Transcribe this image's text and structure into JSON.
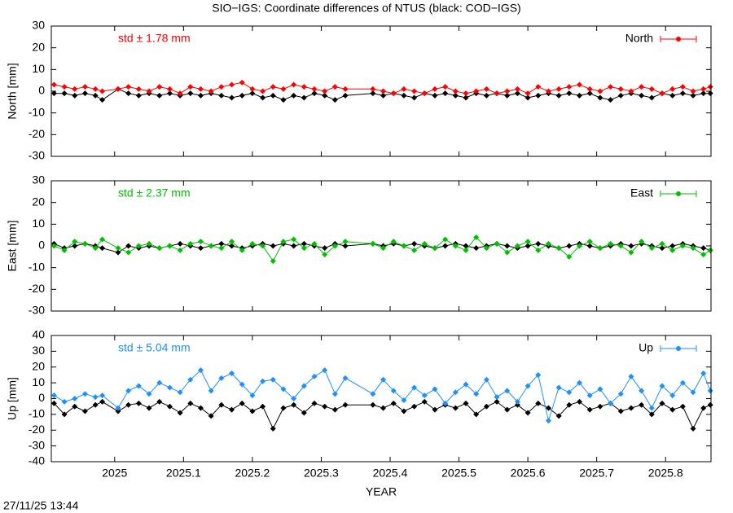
{
  "title": "SIO−IGS: Coordinate differences of NTUS (black: COD−IGS)",
  "timestamp": "27/11/25 13:44",
  "chart_data": [
    {
      "type": "line",
      "ylabel": "North [mm]",
      "annotation": "std ± 1.78 mm",
      "xlim": [
        2024.908,
        2025.866
      ],
      "xticks": [
        2025,
        2025.1,
        2025.2,
        2025.3,
        2025.4,
        2025.5,
        2025.6,
        2025.7,
        2025.8
      ],
      "ylim": [
        -30,
        30
      ],
      "yticks": [
        -30,
        -20,
        -10,
        0,
        10,
        20,
        30
      ],
      "x": [
        2024.912,
        2024.927,
        2024.942,
        2024.957,
        2024.972,
        2024.982,
        2025.005,
        2025.02,
        2025.035,
        2025.05,
        2025.065,
        2025.08,
        2025.095,
        2025.11,
        2025.125,
        2025.14,
        2025.155,
        2025.17,
        2025.185,
        2025.2,
        2025.215,
        2025.23,
        2025.245,
        2025.26,
        2025.275,
        2025.29,
        2025.305,
        2025.32,
        2025.335,
        2025.375,
        2025.39,
        2025.405,
        2025.42,
        2025.435,
        2025.45,
        2025.465,
        2025.48,
        2025.495,
        2025.51,
        2025.525,
        2025.54,
        2025.555,
        2025.57,
        2025.585,
        2025.6,
        2025.615,
        2025.63,
        2025.645,
        2025.66,
        2025.675,
        2025.69,
        2025.705,
        2025.72,
        2025.735,
        2025.75,
        2025.765,
        2025.78,
        2025.795,
        2025.81,
        2025.825,
        2025.84,
        2025.855,
        2025.865
      ],
      "series": [
        {
          "color": "#000000",
          "values": [
            -1,
            -1,
            -2,
            -1,
            -2,
            -4,
            1,
            -1,
            -2,
            -1,
            -2,
            -1,
            -2,
            -1,
            -2,
            -1,
            -2,
            -3,
            -2,
            -1,
            -3,
            -2,
            -4,
            -2,
            -3,
            -1,
            -2,
            -4,
            -2,
            -1,
            -2,
            -1,
            -2,
            -3,
            -1,
            -2,
            -1,
            -2,
            -3,
            -1,
            -2,
            -1,
            -2,
            -1,
            -3,
            -2,
            -1,
            -2,
            -1,
            -2,
            -1,
            -3,
            -4,
            -2,
            -1,
            -2,
            -3,
            -1,
            -2,
            -1,
            -2,
            -1,
            -1
          ]
        },
        {
          "name": "North",
          "color": "#ff0000",
          "values": [
            3,
            2,
            1,
            2,
            1,
            0,
            1,
            2,
            1,
            0,
            2,
            1,
            -1,
            2,
            1,
            0,
            2,
            3,
            4,
            1,
            0,
            2,
            1,
            3,
            2,
            1,
            0,
            2,
            1,
            1,
            0,
            -1,
            1,
            0,
            -1,
            1,
            2,
            0,
            -1,
            0,
            1,
            -1,
            0,
            1,
            -1,
            2,
            0,
            1,
            2,
            3,
            1,
            0,
            2,
            1,
            0,
            2,
            1,
            -1,
            1,
            2,
            0,
            1,
            2
          ]
        }
      ]
    },
    {
      "type": "line",
      "ylabel": "East [mm]",
      "annotation": "std ± 2.37 mm",
      "xlim": [
        2024.908,
        2025.866
      ],
      "xticks": [
        2025,
        2025.1,
        2025.2,
        2025.3,
        2025.4,
        2025.5,
        2025.6,
        2025.7,
        2025.8
      ],
      "ylim": [
        -30,
        30
      ],
      "yticks": [
        -30,
        -20,
        -10,
        0,
        10,
        20,
        30
      ],
      "x": [
        2024.912,
        2024.927,
        2024.942,
        2024.957,
        2024.972,
        2024.982,
        2025.005,
        2025.02,
        2025.035,
        2025.05,
        2025.065,
        2025.08,
        2025.095,
        2025.11,
        2025.125,
        2025.14,
        2025.155,
        2025.17,
        2025.185,
        2025.2,
        2025.215,
        2025.23,
        2025.245,
        2025.26,
        2025.275,
        2025.29,
        2025.305,
        2025.32,
        2025.335,
        2025.375,
        2025.39,
        2025.405,
        2025.42,
        2025.435,
        2025.45,
        2025.465,
        2025.48,
        2025.495,
        2025.51,
        2025.525,
        2025.54,
        2025.555,
        2025.57,
        2025.585,
        2025.6,
        2025.615,
        2025.63,
        2025.645,
        2025.66,
        2025.675,
        2025.69,
        2025.705,
        2025.72,
        2025.735,
        2025.75,
        2025.765,
        2025.78,
        2025.795,
        2025.81,
        2025.825,
        2025.84,
        2025.855,
        2025.865
      ],
      "series": [
        {
          "color": "#000000",
          "values": [
            1,
            -1,
            0,
            1,
            0,
            -1,
            -3,
            0,
            -1,
            0,
            -1,
            0,
            1,
            0,
            -1,
            0,
            1,
            0,
            -1,
            0,
            1,
            0,
            1,
            0,
            1,
            0,
            -1,
            1,
            0,
            1,
            0,
            1,
            0,
            1,
            0,
            -1,
            0,
            1,
            0,
            -1,
            0,
            1,
            0,
            -1,
            0,
            1,
            0,
            -1,
            0,
            1,
            0,
            -1,
            0,
            1,
            0,
            1,
            0,
            -1,
            0,
            1,
            0,
            -1,
            -2
          ]
        },
        {
          "name": "East",
          "color": "#00c000",
          "values": [
            0,
            -2,
            2,
            1,
            -1,
            3,
            -1,
            -3,
            0,
            1,
            -1,
            0,
            -2,
            1,
            2,
            0,
            -1,
            2,
            -2,
            1,
            0,
            -7,
            2,
            3,
            -1,
            1,
            -4,
            0,
            2,
            1,
            -1,
            2,
            0,
            -2,
            1,
            -1,
            3,
            0,
            -2,
            4,
            -1,
            1,
            -3,
            0,
            2,
            -2,
            1,
            -1,
            -5,
            0,
            2,
            -1,
            1,
            0,
            -3,
            2,
            -1,
            1,
            -2,
            0,
            -1,
            -4,
            -2
          ]
        }
      ]
    },
    {
      "type": "line",
      "ylabel": "Up [mm]",
      "annotation": "std ± 5.04 mm",
      "xlabel": "YEAR",
      "xlim": [
        2024.908,
        2025.866
      ],
      "xticks": [
        2025,
        2025.1,
        2025.2,
        2025.3,
        2025.4,
        2025.5,
        2025.6,
        2025.7,
        2025.8
      ],
      "ylim": [
        -40,
        40
      ],
      "yticks": [
        -40,
        -30,
        -20,
        -10,
        0,
        10,
        20,
        30,
        40
      ],
      "x": [
        2024.912,
        2024.927,
        2024.942,
        2024.957,
        2024.972,
        2024.982,
        2025.005,
        2025.02,
        2025.035,
        2025.05,
        2025.065,
        2025.08,
        2025.095,
        2025.11,
        2025.125,
        2025.14,
        2025.155,
        2025.17,
        2025.185,
        2025.2,
        2025.215,
        2025.23,
        2025.245,
        2025.26,
        2025.275,
        2025.29,
        2025.305,
        2025.32,
        2025.335,
        2025.375,
        2025.39,
        2025.405,
        2025.42,
        2025.435,
        2025.45,
        2025.465,
        2025.48,
        2025.495,
        2025.51,
        2025.525,
        2025.54,
        2025.555,
        2025.57,
        2025.585,
        2025.6,
        2025.615,
        2025.63,
        2025.645,
        2025.66,
        2025.675,
        2025.69,
        2025.705,
        2025.72,
        2025.735,
        2025.75,
        2025.765,
        2025.78,
        2025.795,
        2025.81,
        2025.825,
        2025.84,
        2025.855,
        2025.865
      ],
      "series": [
        {
          "color": "#000000",
          "values": [
            -3,
            -10,
            -5,
            -8,
            -4,
            -2,
            -8,
            -4,
            -3,
            -6,
            -2,
            -5,
            -9,
            -3,
            -6,
            -11,
            -4,
            -7,
            -3,
            -8,
            -5,
            -19,
            -6,
            -4,
            -9,
            -3,
            -5,
            -7,
            -4,
            -4,
            -6,
            -3,
            -8,
            -5,
            -2,
            -7,
            -4,
            -6,
            -3,
            -10,
            -5,
            -2,
            -7,
            -4,
            -9,
            -3,
            -6,
            -11,
            -4,
            -2,
            -7,
            -5,
            -3,
            -8,
            -6,
            -4,
            -10,
            -3,
            -7,
            -5,
            -19,
            -6,
            -4
          ]
        },
        {
          "name": "Up",
          "color": "#1e90ff",
          "values": [
            2,
            -2,
            0,
            3,
            1,
            2,
            -6,
            5,
            8,
            3,
            10,
            7,
            4,
            12,
            18,
            5,
            13,
            16,
            9,
            2,
            11,
            12,
            6,
            0,
            8,
            14,
            18,
            3,
            13,
            3,
            12,
            5,
            -1,
            7,
            2,
            6,
            -3,
            4,
            9,
            3,
            12,
            1,
            5,
            -2,
            8,
            15,
            -14,
            7,
            4,
            10,
            2,
            6,
            -3,
            3,
            14,
            5,
            -6,
            8,
            2,
            10,
            4,
            16,
            5
          ]
        }
      ]
    }
  ]
}
